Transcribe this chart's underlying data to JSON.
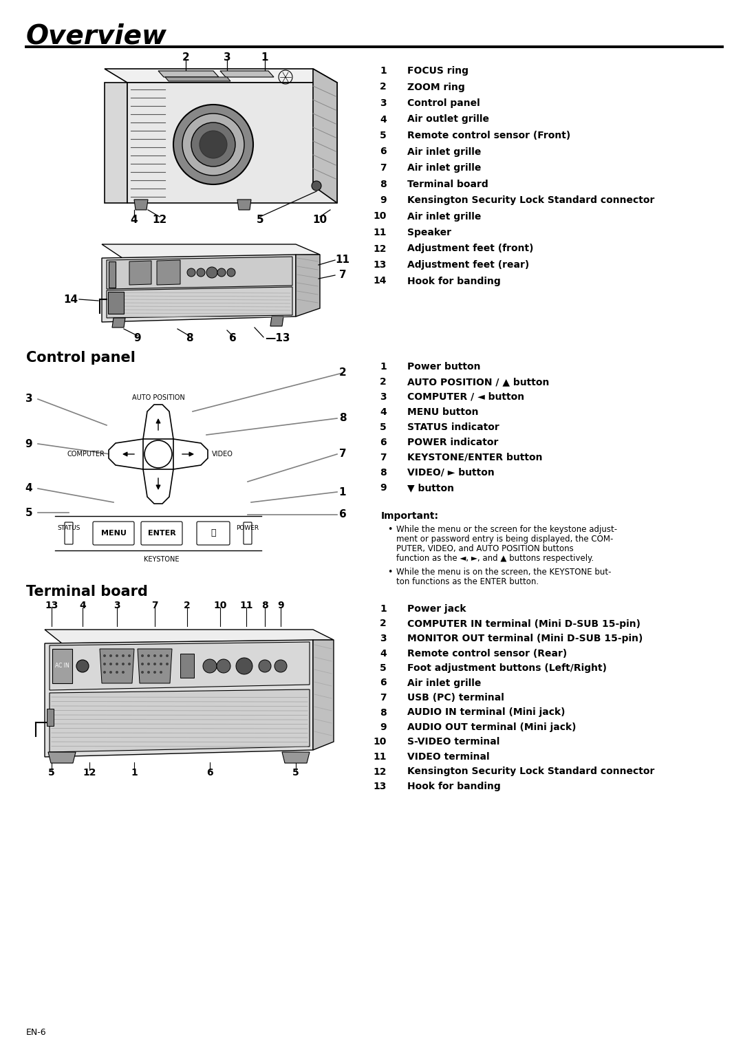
{
  "title": "Overview",
  "bg_color": "#ffffff",
  "section_control": "Control panel",
  "section_terminal": "Terminal board",
  "overview_items": [
    {
      "num": "1",
      "text": "FOCUS ring"
    },
    {
      "num": "2",
      "text": "ZOOM ring"
    },
    {
      "num": "3",
      "text": "Control panel"
    },
    {
      "num": "4",
      "text": "Air outlet grille"
    },
    {
      "num": "5",
      "text": "Remote control sensor (Front)"
    },
    {
      "num": "6",
      "text": "Air inlet grille"
    },
    {
      "num": "7",
      "text": "Air inlet grille"
    },
    {
      "num": "8",
      "text": "Terminal board"
    },
    {
      "num": "9",
      "text": "Kensington Security Lock Standard connector"
    },
    {
      "num": "10",
      "text": "Air inlet grille"
    },
    {
      "num": "11",
      "text": "Speaker"
    },
    {
      "num": "12",
      "text": "Adjustment feet (front)"
    },
    {
      "num": "13",
      "text": "Adjustment feet (rear)"
    },
    {
      "num": "14",
      "text": "Hook for banding"
    }
  ],
  "control_items": [
    {
      "num": "1",
      "text": "Power button"
    },
    {
      "num": "2",
      "text": "AUTO POSITION / ▲ button"
    },
    {
      "num": "3",
      "text": "COMPUTER / ◄ button"
    },
    {
      "num": "4",
      "text": "MENU button"
    },
    {
      "num": "5",
      "text": "STATUS indicator"
    },
    {
      "num": "6",
      "text": "POWER indicator"
    },
    {
      "num": "7",
      "text": "KEYSTONE/ENTER button"
    },
    {
      "num": "8",
      "text": "VIDEO/ ► button"
    },
    {
      "num": "9",
      "text": "▼ button"
    }
  ],
  "important_text": "Important:",
  "important_bullets": [
    "While the menu or the screen for the keystone adjust-\nment or password entry is being displayed, the COM-\nPUTER, VIDEO, and AUTO POSITION buttons\nfunction as the ◄, ►, and ▲ buttons respectively.",
    "While the menu is on the screen, the KEYSTONE but-\nton functions as the ENTER button."
  ],
  "terminal_items": [
    {
      "num": "1",
      "text": "Power jack"
    },
    {
      "num": "2",
      "text": "COMPUTER IN terminal (Mini D-SUB 15-pin)"
    },
    {
      "num": "3",
      "text": "MONITOR OUT terminal (Mini D-SUB 15-pin)"
    },
    {
      "num": "4",
      "text": "Remote control sensor (Rear)"
    },
    {
      "num": "5",
      "text": "Foot adjustment buttons (Left/Right)"
    },
    {
      "num": "6",
      "text": "Air inlet grille"
    },
    {
      "num": "7",
      "text": "USB (PC) terminal"
    },
    {
      "num": "8",
      "text": "AUDIO IN terminal (Mini jack)"
    },
    {
      "num": "9",
      "text": "AUDIO OUT terminal (Mini jack)"
    },
    {
      "num": "10",
      "text": "S-VIDEO terminal"
    },
    {
      "num": "11",
      "text": "VIDEO terminal"
    },
    {
      "num": "12",
      "text": "Kensington Security Lock Standard connector"
    },
    {
      "num": "13",
      "text": "Hook for banding"
    }
  ],
  "footer": "EN-6"
}
